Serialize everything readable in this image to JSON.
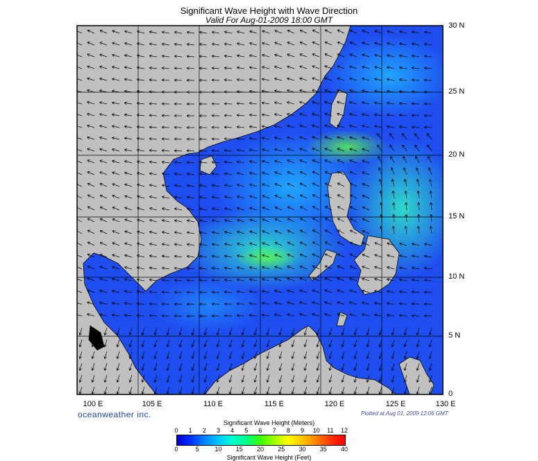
{
  "header": {
    "title": "Significant Wave Height with Wave Direction",
    "subtitle": "Valid For Aug-01-2009 18:00 GMT"
  },
  "map": {
    "lon_labels": [
      "100 E",
      "105 E",
      "110 E",
      "115 E",
      "120 E",
      "125 E",
      "130 E"
    ],
    "lat_labels": [
      "30 N",
      "25 N",
      "20 N",
      "15 N",
      "10 N",
      "5 N",
      "0"
    ],
    "land_color": "#c0c0c0",
    "ocean_base_color": "#1f4ef0"
  },
  "footer": {
    "brand": "oceanweather inc.",
    "plotted": "Plotted at Aug 01, 2009 12:06 GMT"
  },
  "colorbar": {
    "title_meters": "Significant Wave Height (Meters)",
    "title_feet": "Significant Wave Height (Feet)",
    "meters_ticks": [
      "0",
      "1",
      "2",
      "3",
      "4",
      "5",
      "6",
      "7",
      "8",
      "9",
      "10",
      "11",
      "12"
    ],
    "feet_ticks": [
      "0",
      "5",
      "10",
      "15",
      "20",
      "25",
      "30",
      "35",
      "40"
    ]
  }
}
